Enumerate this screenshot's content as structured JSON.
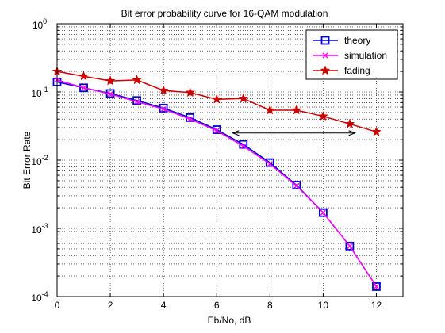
{
  "chart_data": {
    "type": "line",
    "title": "Bit error probability curve for 16-QAM modulation",
    "xlabel": "Eb/No, dB",
    "ylabel": "Bit Error Rate",
    "xlim": [
      0,
      13
    ],
    "ylim": [
      0.0001,
      1
    ],
    "yscale": "log",
    "grid": true,
    "legend_position": "top-right",
    "x_ticks": [
      "0",
      "2",
      "4",
      "6",
      "8",
      "10",
      "12"
    ],
    "y_ticks": [
      {
        "base": "10",
        "exp": "-4"
      },
      {
        "base": "10",
        "exp": "-3"
      },
      {
        "base": "10",
        "exp": "-2"
      },
      {
        "base": "10",
        "exp": "-1"
      },
      {
        "base": "10",
        "exp": "0"
      }
    ],
    "series": [
      {
        "name": "theory",
        "color": "#0000cc",
        "marker": "square",
        "x": [
          0,
          1,
          2,
          3,
          4,
          5,
          6,
          7,
          8,
          9,
          10,
          11,
          12
        ],
        "y": [
          0.14,
          0.115,
          0.095,
          0.075,
          0.058,
          0.042,
          0.028,
          0.017,
          0.0092,
          0.0043,
          0.0017,
          0.00055,
          0.00014
        ]
      },
      {
        "name": "simulation",
        "color": "#ff00ff",
        "marker": "x",
        "x": [
          0,
          1,
          2,
          3,
          4,
          5,
          6,
          7,
          8,
          9,
          10,
          11,
          12
        ],
        "y": [
          0.15,
          0.115,
          0.093,
          0.072,
          0.056,
          0.04,
          0.027,
          0.016,
          0.0088,
          0.0042,
          0.0017,
          0.00055,
          0.00014
        ]
      },
      {
        "name": "fading",
        "color": "#cc0000",
        "marker": "star",
        "x": [
          0,
          1,
          2,
          3,
          4,
          5,
          6,
          7,
          8,
          9,
          10,
          11,
          12
        ],
        "y": [
          0.2,
          0.17,
          0.145,
          0.15,
          0.105,
          0.098,
          0.078,
          0.08,
          0.054,
          0.054,
          0.044,
          0.034,
          0.026
        ]
      }
    ],
    "annotations": [
      {
        "type": "double-arrow",
        "x1": 6.6,
        "x2": 11.2,
        "y": 0.025
      }
    ]
  }
}
